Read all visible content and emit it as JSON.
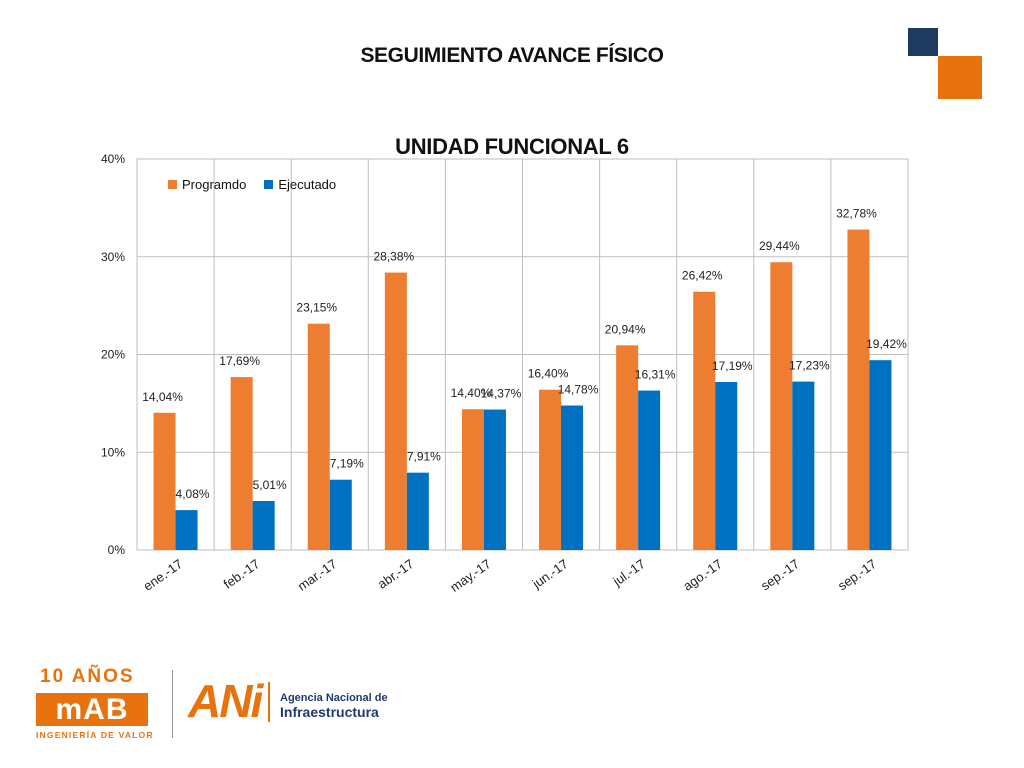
{
  "slide": {
    "title": "SEGUIMIENTO AVANCE FÍSICO"
  },
  "colors": {
    "programado": "#ed7d31",
    "ejecutado": "#0070c0",
    "accent_navy": "#1f3a5f",
    "accent_orange": "#e8730e"
  },
  "chart_data": {
    "type": "bar",
    "title": "UNIDAD FUNCIONAL 6",
    "xlabel": "",
    "ylabel": "",
    "ylim": [
      0,
      40
    ],
    "yticks": [
      "0%",
      "10%",
      "20%",
      "30%",
      "40%"
    ],
    "grid": true,
    "legend_position": "top-left",
    "categories": [
      "ene.-17",
      "feb.-17",
      "mar.-17",
      "abr.-17",
      "may.-17",
      "jun.-17",
      "jul.-17",
      "ago.-17",
      "sep.-17",
      "sep.-17"
    ],
    "series": [
      {
        "name": "Programdo",
        "values": [
          14.04,
          17.69,
          23.15,
          28.38,
          14.4,
          16.4,
          20.94,
          26.42,
          29.44,
          32.78
        ],
        "labels": [
          "14,04%",
          "17,69%",
          "23,15%",
          "28,38%",
          "14,40%",
          "16,40%",
          "20,94%",
          "26,42%",
          "29,44%",
          "32,78%"
        ]
      },
      {
        "name": "Ejecutado",
        "values": [
          4.08,
          5.01,
          7.19,
          7.91,
          14.37,
          14.78,
          16.31,
          17.19,
          17.23,
          19.42
        ],
        "labels": [
          "4,08%",
          "5,01%",
          "7,19%",
          "7,91%",
          "14,37%",
          "14,78%",
          "16,31%",
          "17,19%",
          "17,23%",
          "19,42%"
        ]
      }
    ]
  },
  "footer": {
    "mab_top": "10 AÑOS",
    "mab_name": "mAB",
    "mab_tagline": "INGENIERÍA DE VALOR",
    "ani_mark": "ANi",
    "ani_line1": "Agencia Nacional de",
    "ani_line2": "Infraestructura"
  }
}
